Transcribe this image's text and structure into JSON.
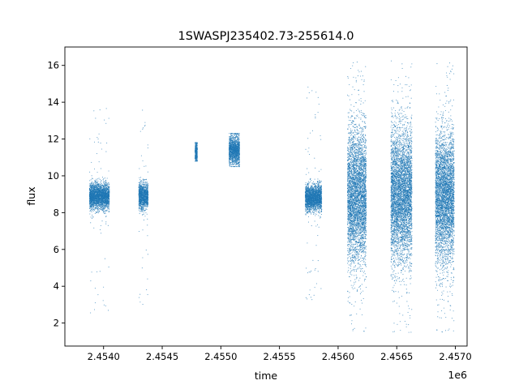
{
  "chart_data": {
    "type": "scatter",
    "title": "1SWASPJ235402.73-255614.0",
    "xlabel": "time",
    "ylabel": "flux",
    "x_offset_label": "1e6",
    "xlim": [
      2.45367,
      2.4571
    ],
    "ylim": [
      0.75,
      17.0
    ],
    "grid": false,
    "point_color": "#1f77b4",
    "x_ticks": [
      {
        "value": 2.454,
        "label": "2.4540"
      },
      {
        "value": 2.4545,
        "label": "2.4545"
      },
      {
        "value": 2.455,
        "label": "2.4550"
      },
      {
        "value": 2.4555,
        "label": "2.4555"
      },
      {
        "value": 2.456,
        "label": "2.4560"
      },
      {
        "value": 2.4565,
        "label": "2.4565"
      },
      {
        "value": 2.457,
        "label": "2.4570"
      }
    ],
    "y_ticks": [
      {
        "value": 2,
        "label": "2"
      },
      {
        "value": 4,
        "label": "4"
      },
      {
        "value": 6,
        "label": "6"
      },
      {
        "value": 8,
        "label": "8"
      },
      {
        "value": 10,
        "label": "10"
      },
      {
        "value": 12,
        "label": "12"
      },
      {
        "value": 14,
        "label": "14"
      },
      {
        "value": 16,
        "label": "16"
      }
    ],
    "observation_seasons": [
      {
        "x_start": 2.45388,
        "x_end": 2.45405,
        "flux_center": 8.9,
        "flux_spread": 0.35,
        "flux_min": 2.5,
        "flux_max": 13.7
      },
      {
        "x_start": 2.4543,
        "x_end": 2.45438,
        "flux_center": 8.9,
        "flux_spread": 0.35,
        "flux_min": 3.0,
        "flux_max": 14.1
      },
      {
        "x_start": 2.45478,
        "x_end": 2.4548,
        "flux_center": 11.3,
        "flux_spread": 0.3,
        "flux_min": 10.8,
        "flux_max": 11.8
      },
      {
        "x_start": 2.45507,
        "x_end": 2.45516,
        "flux_center": 11.4,
        "flux_spread": 0.4,
        "flux_min": 10.5,
        "flux_max": 12.3
      },
      {
        "x_start": 2.45572,
        "x_end": 2.45586,
        "flux_center": 8.8,
        "flux_spread": 0.35,
        "flux_min": 3.0,
        "flux_max": 15.0
      },
      {
        "x_start": 2.45608,
        "x_end": 2.45624,
        "flux_center": 8.9,
        "flux_spread": 1.8,
        "flux_min": 1.5,
        "flux_max": 16.3
      },
      {
        "x_start": 2.45645,
        "x_end": 2.45663,
        "flux_center": 8.9,
        "flux_spread": 1.8,
        "flux_min": 1.4,
        "flux_max": 16.3
      },
      {
        "x_start": 2.45683,
        "x_end": 2.45699,
        "flux_center": 8.9,
        "flux_spread": 1.8,
        "flux_min": 1.5,
        "flux_max": 16.3
      }
    ]
  }
}
